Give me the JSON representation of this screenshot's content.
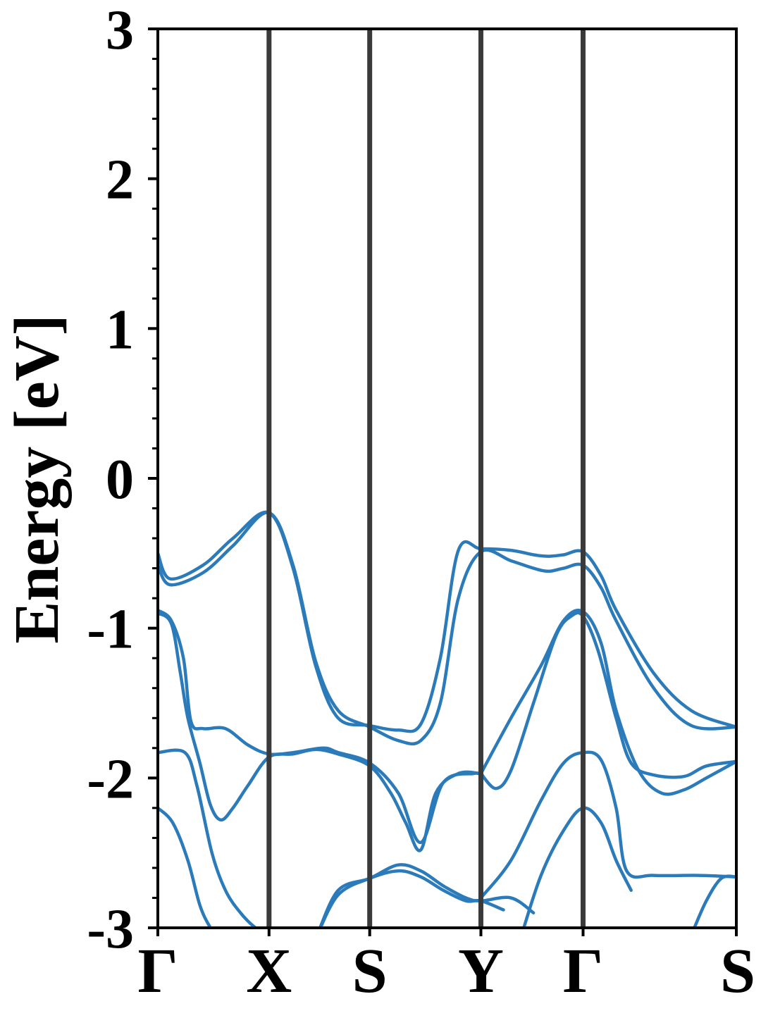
{
  "chart_data": {
    "type": "line",
    "title": "",
    "xlabel": "",
    "ylabel": "Energy [eV]",
    "ylim": [
      -3,
      3
    ],
    "xlim": [
      0,
      3.85
    ],
    "yticks": [
      -3,
      -2,
      -1,
      0,
      1,
      2,
      3
    ],
    "ytick_labels": [
      "-3",
      "-2",
      "-1",
      "0",
      "1",
      "2",
      "3"
    ],
    "yminor_step": 0.2,
    "high_symmetry_points": [
      {
        "label": "Γ",
        "x": 0.0
      },
      {
        "label": "X",
        "x": 0.74
      },
      {
        "label": "S",
        "x": 1.41
      },
      {
        "label": "Y",
        "x": 2.15
      },
      {
        "label": "Γ",
        "x": 2.83
      },
      {
        "label": "S",
        "x": 3.85
      }
    ],
    "grid": false,
    "legend": false,
    "colors": {
      "band": "#2b7bba",
      "kline": "#3a3a3a",
      "axis": "#000000"
    },
    "series": [
      {
        "x": [
          0,
          0.08,
          0.3,
          0.5,
          0.74,
          0.9,
          1.05,
          1.2,
          1.41,
          1.6,
          1.75,
          1.88,
          2.0,
          2.15,
          2.35,
          2.5,
          2.6,
          2.7,
          2.83,
          2.95,
          3.05,
          3.3,
          3.55,
          3.85
        ],
        "y": [
          -0.5,
          -0.67,
          -0.58,
          -0.4,
          -0.23,
          -0.6,
          -1.25,
          -1.6,
          -1.65,
          -1.68,
          -1.64,
          -1.2,
          -0.48,
          -0.47,
          -0.48,
          -0.51,
          -0.52,
          -0.51,
          -0.49,
          -0.65,
          -0.88,
          -1.3,
          -1.55,
          -1.66
        ]
      },
      {
        "x": [
          0,
          0.08,
          0.3,
          0.5,
          0.74,
          0.9,
          1.05,
          1.2,
          1.41,
          1.6,
          1.75,
          1.88,
          2.0,
          2.15,
          2.35,
          2.5,
          2.6,
          2.7,
          2.83,
          2.95,
          3.05,
          3.3,
          3.55,
          3.85
        ],
        "y": [
          -0.58,
          -0.71,
          -0.63,
          -0.45,
          -0.23,
          -0.58,
          -1.22,
          -1.55,
          -1.66,
          -1.75,
          -1.75,
          -1.5,
          -0.8,
          -0.49,
          -0.55,
          -0.6,
          -0.62,
          -0.6,
          -0.58,
          -0.73,
          -0.95,
          -1.4,
          -1.65,
          -1.66
        ]
      },
      {
        "x": [
          0,
          0.09,
          0.17,
          0.22,
          0.3,
          0.45,
          0.6,
          0.74,
          0.9,
          1.1,
          1.2,
          1.41,
          1.6,
          1.75,
          1.9,
          2.1,
          2.15
        ],
        "y": [
          -0.88,
          -0.95,
          -1.2,
          -1.62,
          -1.67,
          -1.67,
          -1.78,
          -1.84,
          -1.83,
          -1.8,
          -1.83,
          -1.9,
          -2.1,
          -2.43,
          -2.03,
          -1.97,
          -1.98
        ]
      },
      {
        "x": [
          0,
          0.09,
          0.15,
          0.2,
          0.28,
          0.35,
          0.42,
          0.5,
          0.6,
          0.74,
          0.9,
          1.05,
          1.2,
          1.41,
          1.55,
          1.65,
          1.75,
          1.85,
          2.0,
          2.15
        ],
        "y": [
          -0.9,
          -0.97,
          -1.3,
          -1.6,
          -1.9,
          -2.18,
          -2.28,
          -2.2,
          -2.05,
          -1.86,
          -1.84,
          -1.81,
          -1.84,
          -1.92,
          -2.1,
          -2.3,
          -2.48,
          -2.1,
          -1.97,
          -1.97
        ]
      },
      {
        "x": [
          2.15,
          2.35,
          2.55,
          2.7,
          2.83,
          2.95,
          3.05,
          3.2,
          3.35,
          3.5,
          3.65,
          3.85
        ],
        "y": [
          -1.97,
          -1.6,
          -1.25,
          -0.95,
          -0.89,
          -1.1,
          -1.55,
          -1.95,
          -2.1,
          -2.08,
          -2.0,
          -1.89
        ]
      },
      {
        "x": [
          2.15,
          2.25,
          2.35,
          2.5,
          2.65,
          2.75,
          2.83,
          2.93,
          3.05,
          3.15,
          3.3,
          3.5,
          3.65,
          3.85
        ],
        "y": [
          -1.97,
          -2.07,
          -1.95,
          -1.5,
          -1.05,
          -0.92,
          -0.92,
          -1.15,
          -1.6,
          -1.9,
          -1.98,
          -1.99,
          -1.92,
          -1.89
        ]
      },
      {
        "x": [
          0,
          0.18,
          0.26,
          0.36,
          0.45,
          0.55,
          0.65,
          0.74
        ],
        "y": [
          -1.83,
          -1.83,
          -2.05,
          -2.5,
          -2.75,
          -2.9,
          -3.0,
          -3.05
        ]
      },
      {
        "x": [
          2.15,
          2.35,
          2.55,
          2.7,
          2.83,
          2.95,
          3.05,
          3.12,
          3.3,
          3.6,
          3.85
        ],
        "y": [
          -2.8,
          -2.55,
          -2.15,
          -1.9,
          -1.83,
          -1.88,
          -2.2,
          -2.62,
          -2.65,
          -2.65,
          -2.66
        ]
      },
      {
        "x": [
          0,
          0.1,
          0.2,
          0.28,
          0.35,
          0.42
        ],
        "y": [
          -2.2,
          -2.3,
          -2.55,
          -2.85,
          -3.0,
          -3.1
        ]
      },
      {
        "x": [
          1.06,
          1.2,
          1.41,
          1.6,
          1.75,
          1.9,
          2.05,
          2.15,
          2.35,
          2.5
        ],
        "y": [
          -3.05,
          -2.75,
          -2.67,
          -2.58,
          -2.62,
          -2.72,
          -2.8,
          -2.82,
          -2.8,
          -2.9
        ]
      },
      {
        "x": [
          1.06,
          1.2,
          1.41,
          1.6,
          1.75,
          1.9,
          2.05,
          2.15,
          2.3
        ],
        "y": [
          -3.05,
          -2.78,
          -2.67,
          -2.62,
          -2.66,
          -2.75,
          -2.82,
          -2.82,
          -2.88
        ]
      },
      {
        "x": [
          2.42,
          2.55,
          2.7,
          2.83,
          2.95,
          3.05,
          3.15
        ],
        "y": [
          -3.05,
          -2.65,
          -2.35,
          -2.2,
          -2.3,
          -2.55,
          -2.75
        ]
      },
      {
        "x": [
          3.55,
          3.65,
          3.75,
          3.85
        ],
        "y": [
          -3.05,
          -2.82,
          -2.67,
          -2.66
        ]
      }
    ]
  }
}
